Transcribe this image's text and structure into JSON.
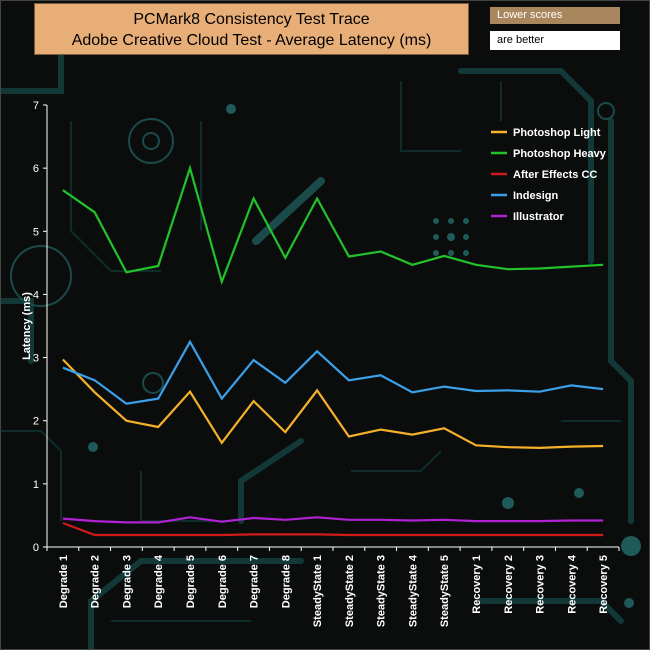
{
  "chart_data": {
    "type": "line",
    "title_line1": "PCMark8 Consistency Test Trace",
    "title_line2": "Adobe Creative Cloud Test -  Average Latency (ms)",
    "note_line1": "Lower scores",
    "note_line2": "are better",
    "ylabel": "Latency (ms)",
    "xlabel": "",
    "ylim": [
      0,
      7
    ],
    "yticks": [
      "0",
      "1",
      "2",
      "3",
      "4",
      "5",
      "6",
      "7"
    ],
    "grid": false,
    "legend_position": "top-right",
    "categories": [
      "Degrade 1",
      "Degrade 2",
      "Degrade 3",
      "Degrade 4",
      "Degrade 5",
      "Degrade 6",
      "Degrade 7",
      "Degrade 8",
      "SteadyState 1",
      "SteadyState 2",
      "SteadyState 3",
      "SteadyState 4",
      "SteadyState 5",
      "Recovery 1",
      "Recovery 2",
      "Recovery 3",
      "Recovery 4",
      "Recovery 5"
    ],
    "series": [
      {
        "name": "Photoshop Light",
        "color": "#f6b12a",
        "values": [
          2.97,
          2.45,
          2.0,
          1.9,
          2.46,
          1.65,
          2.31,
          1.82,
          2.48,
          1.75,
          1.86,
          1.78,
          1.88,
          1.61,
          1.58,
          1.57,
          1.59,
          1.6
        ]
      },
      {
        "name": " Photoshop Heavy",
        "color": "#22c22a",
        "values": [
          5.65,
          5.3,
          4.35,
          4.45,
          6.0,
          4.2,
          5.52,
          4.58,
          5.52,
          4.6,
          4.68,
          4.47,
          4.61,
          4.47,
          4.4,
          4.41,
          4.44,
          4.47
        ]
      },
      {
        "name": "After Effects CC",
        "color": "#d11a1a",
        "values": [
          0.38,
          0.19,
          0.19,
          0.19,
          0.19,
          0.19,
          0.2,
          0.2,
          0.2,
          0.19,
          0.19,
          0.19,
          0.19,
          0.19,
          0.19,
          0.19,
          0.19,
          0.19
        ]
      },
      {
        "name": "Indesign",
        "color": "#3aa0e8",
        "values": [
          2.84,
          2.64,
          2.27,
          2.35,
          3.25,
          2.35,
          2.96,
          2.6,
          3.1,
          2.64,
          2.72,
          2.45,
          2.54,
          2.47,
          2.48,
          2.46,
          2.56,
          2.5
        ]
      },
      {
        "name": "Illustrator",
        "color": "#b022d4",
        "values": [
          0.45,
          0.41,
          0.39,
          0.39,
          0.47,
          0.4,
          0.46,
          0.43,
          0.47,
          0.43,
          0.43,
          0.42,
          0.43,
          0.41,
          0.41,
          0.41,
          0.42,
          0.42
        ]
      }
    ]
  }
}
